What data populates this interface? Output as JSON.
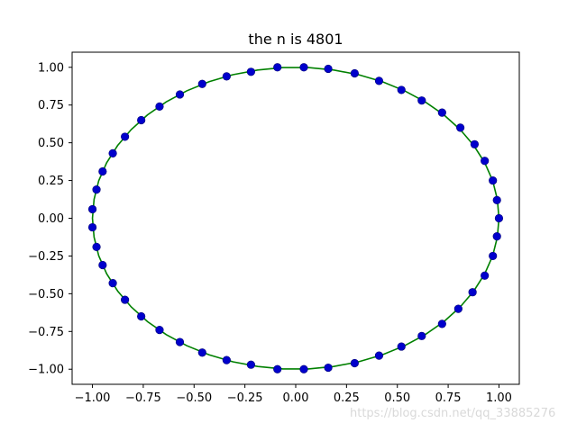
{
  "chart_data": {
    "type": "scatter",
    "title": "the n is 4801",
    "xlabel": "",
    "ylabel": "",
    "xlim": [
      -1.1,
      1.1
    ],
    "ylim": [
      -1.1,
      1.1
    ],
    "xticks": [
      -1.0,
      -0.75,
      -0.5,
      -0.25,
      0.0,
      0.25,
      0.5,
      0.75,
      1.0
    ],
    "xtick_labels": [
      "−1.00",
      "−0.75",
      "−0.50",
      "−0.25",
      "0.00",
      "0.25",
      "0.50",
      "0.75",
      "1.00"
    ],
    "yticks": [
      -1.0,
      -0.75,
      -0.5,
      -0.25,
      0.0,
      0.25,
      0.5,
      0.75,
      1.0
    ],
    "ytick_labels": [
      "−1.00",
      "−0.75",
      "−0.50",
      "−0.25",
      "0.00",
      "0.25",
      "0.50",
      "0.75",
      "1.00"
    ],
    "grid": false,
    "series": [
      {
        "mark": "line",
        "color": "#008000",
        "x": [
          1.0,
          0.992,
          0.969,
          0.93,
          0.876,
          0.809,
          0.729,
          0.637,
          0.536,
          0.426,
          0.309,
          0.187,
          0.063,
          -0.063,
          -0.187,
          -0.309,
          -0.426,
          -0.536,
          -0.637,
          -0.729,
          -0.809,
          -0.876,
          -0.93,
          -0.969,
          -0.992,
          -1.0,
          -0.992,
          -0.969,
          -0.93,
          -0.876,
          -0.809,
          -0.729,
          -0.637,
          -0.536,
          -0.426,
          -0.309,
          -0.187,
          -0.063,
          0.063,
          0.187,
          0.309,
          0.426,
          0.536,
          0.637,
          0.729,
          0.809,
          0.876,
          0.93,
          0.969,
          0.992,
          1.0
        ],
        "y": [
          0.0,
          0.125,
          0.249,
          0.368,
          0.482,
          0.588,
          0.685,
          0.771,
          0.844,
          0.905,
          0.951,
          0.982,
          0.998,
          0.998,
          0.982,
          0.951,
          0.905,
          0.844,
          0.771,
          0.685,
          0.588,
          0.482,
          0.368,
          0.249,
          0.125,
          0.0,
          -0.125,
          -0.249,
          -0.368,
          -0.482,
          -0.588,
          -0.685,
          -0.771,
          -0.844,
          -0.905,
          -0.951,
          -0.982,
          -0.998,
          -0.998,
          -0.982,
          -0.951,
          -0.905,
          -0.844,
          -0.771,
          -0.685,
          -0.588,
          -0.482,
          -0.368,
          -0.249,
          -0.125,
          0.0
        ]
      },
      {
        "mark": "point",
        "color": "#0000cc",
        "x": [
          1.0,
          0.99,
          0.97,
          0.93,
          0.88,
          0.81,
          0.72,
          0.62,
          0.52,
          0.41,
          0.29,
          0.16,
          0.04,
          -0.09,
          -0.22,
          -0.34,
          -0.46,
          -0.57,
          -0.67,
          -0.76,
          -0.84,
          -0.9,
          -0.95,
          -0.98,
          -1.0,
          -1.0,
          -0.98,
          -0.95,
          -0.9,
          -0.84,
          -0.76,
          -0.67,
          -0.57,
          -0.46,
          -0.34,
          -0.22,
          -0.09,
          0.04,
          0.16,
          0.29,
          0.41,
          0.52,
          0.62,
          0.72,
          0.8,
          0.87,
          0.93,
          0.97,
          0.99
        ],
        "y": [
          0.0,
          0.12,
          0.25,
          0.38,
          0.49,
          0.6,
          0.7,
          0.78,
          0.85,
          0.91,
          0.96,
          0.99,
          1.0,
          1.0,
          0.97,
          0.94,
          0.89,
          0.82,
          0.74,
          0.65,
          0.54,
          0.43,
          0.31,
          0.19,
          0.06,
          -0.06,
          -0.19,
          -0.31,
          -0.43,
          -0.54,
          -0.65,
          -0.74,
          -0.82,
          -0.89,
          -0.94,
          -0.97,
          -1.0,
          -1.0,
          -0.99,
          -0.96,
          -0.91,
          -0.85,
          -0.78,
          -0.7,
          -0.6,
          -0.49,
          -0.38,
          -0.25,
          -0.12
        ]
      }
    ]
  },
  "watermark": "https://blog.csdn.net/qq_33885276"
}
